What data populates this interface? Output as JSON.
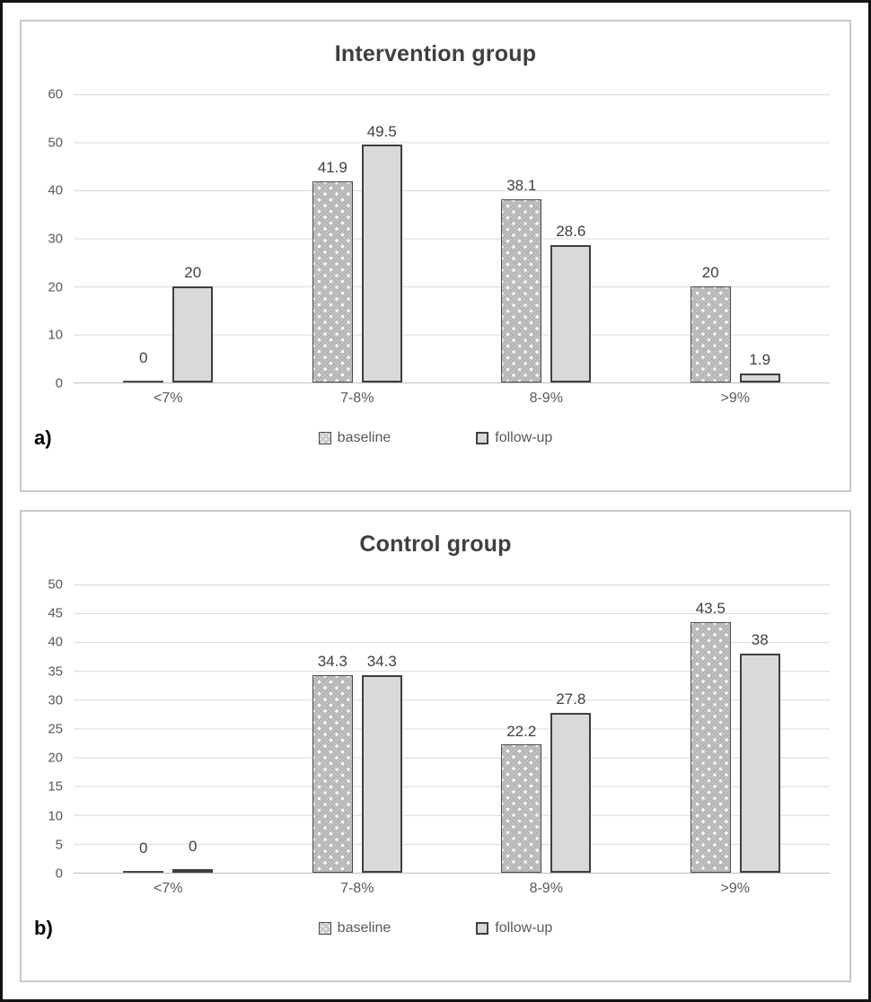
{
  "figure": {
    "type": "two-panel bar chart figure"
  },
  "colors": {
    "frame_border": "#141414",
    "panel_border": "#c9c9c9",
    "title_text": "#3f3f3f",
    "axis_text": "#595959",
    "data_label_text": "#404040",
    "gridline": "#d9d9d9",
    "axis_line": "#bfbfbf",
    "followup_fill": "#d9d9d9",
    "bar_border": "#3f3f3f",
    "baseline_pattern_base": "#c9c9c9"
  },
  "chart_data": [
    {
      "type": "bar",
      "title": "Intervention group",
      "panel_label": "a)",
      "categories": [
        "<7%",
        "7-8%",
        "8-9%",
        ">9%"
      ],
      "series": [
        {
          "name": "baseline",
          "values": [
            0,
            41.9,
            38.1,
            20
          ]
        },
        {
          "name": "follow-up",
          "values": [
            20,
            49.5,
            28.6,
            1.9
          ]
        }
      ],
      "labels": [
        [
          "0",
          "41.9",
          "38.1",
          "20"
        ],
        [
          "20",
          "49.5",
          "28.6",
          "1.9"
        ]
      ],
      "xlabel": "",
      "ylabel": "",
      "ylim": [
        0,
        60
      ],
      "ytick_step": 10,
      "yticks": [
        "60",
        "50",
        "40",
        "30",
        "20",
        "10",
        "0"
      ],
      "ymax": 60,
      "n_intervals": 6,
      "grid": true,
      "legend_position": "bottom"
    },
    {
      "type": "bar",
      "title": "Control group",
      "panel_label": "b)",
      "categories": [
        "<7%",
        "7-8%",
        "8-9%",
        ">9%"
      ],
      "series": [
        {
          "name": "baseline",
          "values": [
            0,
            34.3,
            22.2,
            43.5
          ]
        },
        {
          "name": "follow-up",
          "values": [
            0,
            34.3,
            27.8,
            38
          ]
        }
      ],
      "labels": [
        [
          "0",
          "34.3",
          "22.2",
          "43.5"
        ],
        [
          "0",
          "34.3",
          "27.8",
          "38"
        ]
      ],
      "xlabel": "",
      "ylabel": "",
      "ylim": [
        0,
        50
      ],
      "ytick_step": 5,
      "yticks": [
        "50",
        "45",
        "40",
        "35",
        "30",
        "25",
        "20",
        "15",
        "10",
        "5",
        "0"
      ],
      "ymax": 50,
      "n_intervals": 10,
      "grid": true,
      "legend_position": "bottom"
    }
  ]
}
